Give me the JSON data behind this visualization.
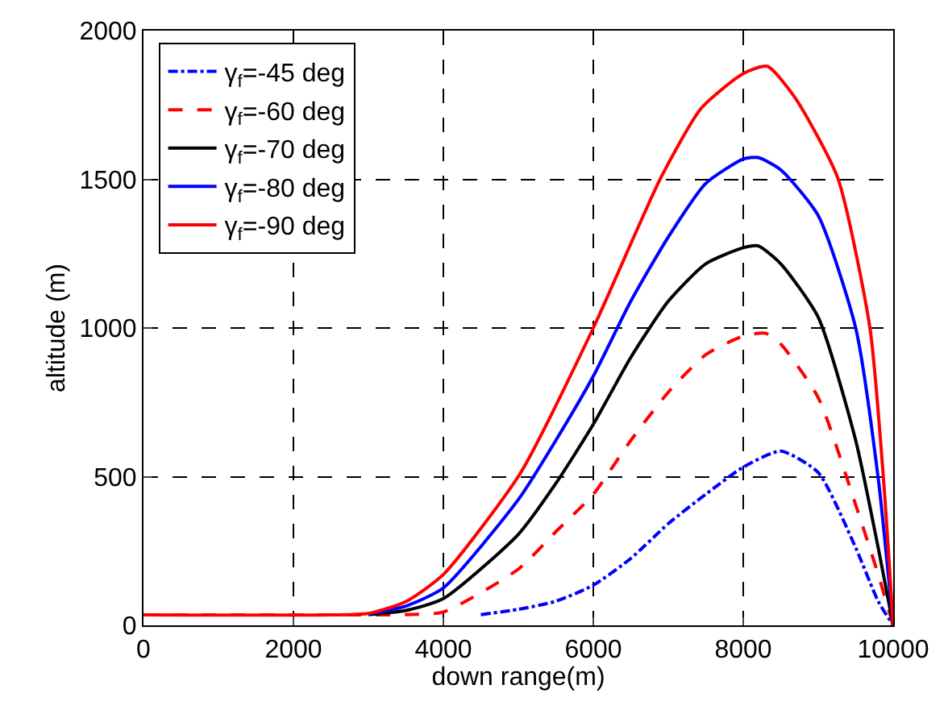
{
  "chart_data": {
    "type": "line",
    "xlabel": "down range(m)",
    "ylabel": "altitude (m)",
    "xlim": [
      0,
      10000
    ],
    "xticks": [
      0,
      2000,
      4000,
      6000,
      8000,
      10000
    ],
    "ylim": [
      0,
      2000
    ],
    "yticks": [
      0,
      500,
      1000,
      1500,
      2000
    ],
    "grid": true,
    "legend": "top left",
    "series": [
      {
        "name": "γ$_{f}$=-45 deg",
        "color": "#0000ff",
        "line_style": "dashdot",
        "x": [
          4500,
          5000,
          5500,
          6000,
          6500,
          7000,
          7500,
          8000,
          8500,
          9000,
          9500,
          9800,
          10000
        ],
        "values": [
          36,
          54,
          81,
          135,
          225,
          342,
          441,
          532,
          586,
          514,
          261,
          81,
          0
        ]
      },
      {
        "name": "γ$_{f}$=-60 deg",
        "color": "#ff0000",
        "line_style": "dashed",
        "x": [
          0,
          2500,
          3500,
          4000,
          5000,
          5500,
          6000,
          6500,
          7000,
          7500,
          8000,
          8300,
          8500,
          9000,
          9500,
          9800,
          10000
        ],
        "values": [
          35,
          35,
          36,
          45,
          189,
          315,
          441,
          622,
          784,
          910,
          973,
          982,
          946,
          766,
          405,
          171,
          0
        ]
      },
      {
        "name": "γ$_{f}$=-70 deg",
        "color": "#000000",
        "line_style": "solid",
        "x": [
          3000,
          3500,
          4000,
          5000,
          5500,
          6000,
          6500,
          7000,
          7500,
          8000,
          8200,
          8500,
          9000,
          9500,
          9800,
          10000
        ],
        "values": [
          36,
          50,
          90,
          306,
          477,
          676,
          901,
          1090,
          1216,
          1270,
          1276,
          1216,
          1036,
          622,
          261,
          0
        ]
      },
      {
        "name": "γ$_{f}$=-80 deg",
        "color": "#0000ff",
        "line_style": "solid",
        "x": [
          3000,
          3500,
          4000,
          5000,
          5500,
          6000,
          6500,
          7000,
          7500,
          8000,
          8200,
          8500,
          9000,
          9500,
          9800,
          10000
        ],
        "values": [
          38,
          65,
          126,
          423,
          622,
          838,
          1090,
          1306,
          1486,
          1568,
          1573,
          1532,
          1378,
          1000,
          495,
          0
        ]
      },
      {
        "name": "γ$_{f}$=-90 deg",
        "color": "#ff0000",
        "line_style": "solid",
        "x": [
          0,
          2500,
          3000,
          3500,
          4000,
          5030,
          6000,
          6900,
          7440,
          8000,
          8320,
          8690,
          9260,
          9690,
          9870,
          10000
        ],
        "values": [
          35,
          35,
          40,
          80,
          171,
          513,
          1000,
          1505,
          1739,
          1856,
          1880,
          1775,
          1505,
          1000,
          495,
          0
        ]
      }
    ]
  }
}
